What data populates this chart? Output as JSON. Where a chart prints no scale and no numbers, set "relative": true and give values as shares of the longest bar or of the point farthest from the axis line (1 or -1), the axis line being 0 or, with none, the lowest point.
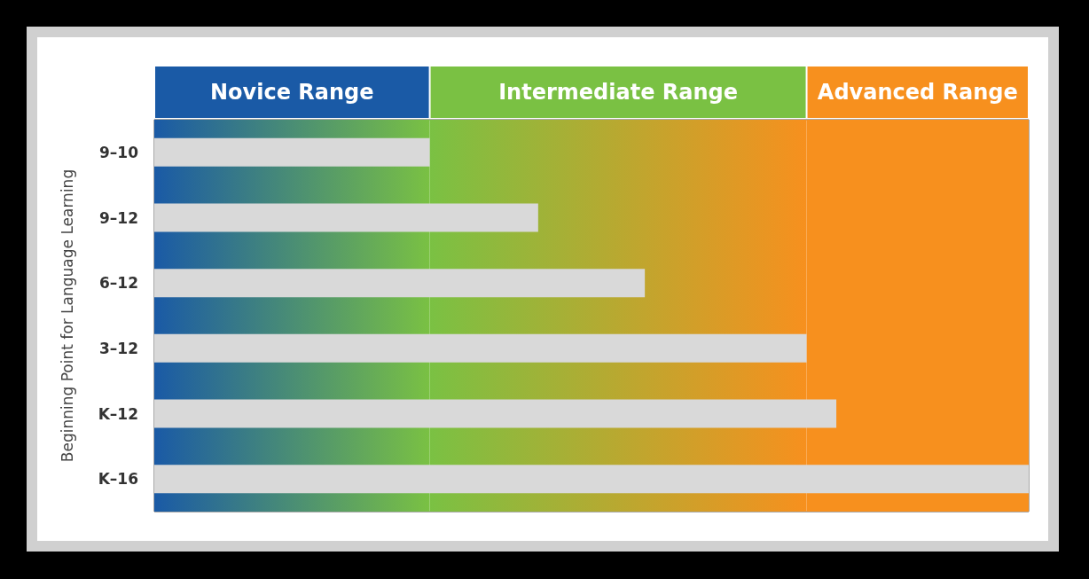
{
  "chart_data": {
    "type": "bar",
    "orientation": "horizontal",
    "relative": true,
    "ylabel": "Beginning Point for Language Learning",
    "categories": [
      "9–10",
      "9–12",
      "6–12",
      "3–12",
      "K–12",
      "K–16"
    ],
    "values": [
      0.315,
      0.439,
      0.561,
      0.746,
      0.78,
      1
    ],
    "color": "#d9d9d9",
    "bands": [
      {
        "axis": "x",
        "from": 0,
        "to": 0.315,
        "label": "Novice Range",
        "color": "#1a5aa6"
      },
      {
        "axis": "x",
        "from": 0.315,
        "to": 0.746,
        "label": "Intermediate Range",
        "color": "#7ac143"
      },
      {
        "axis": "x",
        "from": 0.746,
        "to": 1,
        "label": "Advanced Range",
        "color": "#f7901e"
      }
    ]
  }
}
